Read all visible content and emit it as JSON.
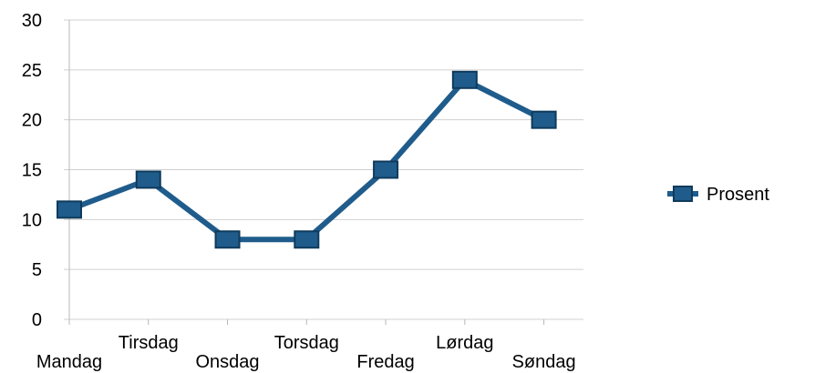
{
  "chart_data": {
    "type": "line",
    "title": "",
    "xlabel": "",
    "ylabel": "",
    "categories": [
      "Mandag",
      "Tirsdag",
      "Onsdag",
      "Torsdag",
      "Fredag",
      "Lørdag",
      "Søndag"
    ],
    "series": [
      {
        "name": "Prosent",
        "values": [
          11,
          14,
          8,
          8,
          15,
          24,
          20
        ],
        "color": "#1f5c8c"
      }
    ],
    "ylim": [
      0,
      30
    ],
    "yticks": [
      0,
      5,
      10,
      15,
      20,
      25,
      30
    ],
    "grid": true,
    "legend": "right",
    "marker": "square"
  }
}
